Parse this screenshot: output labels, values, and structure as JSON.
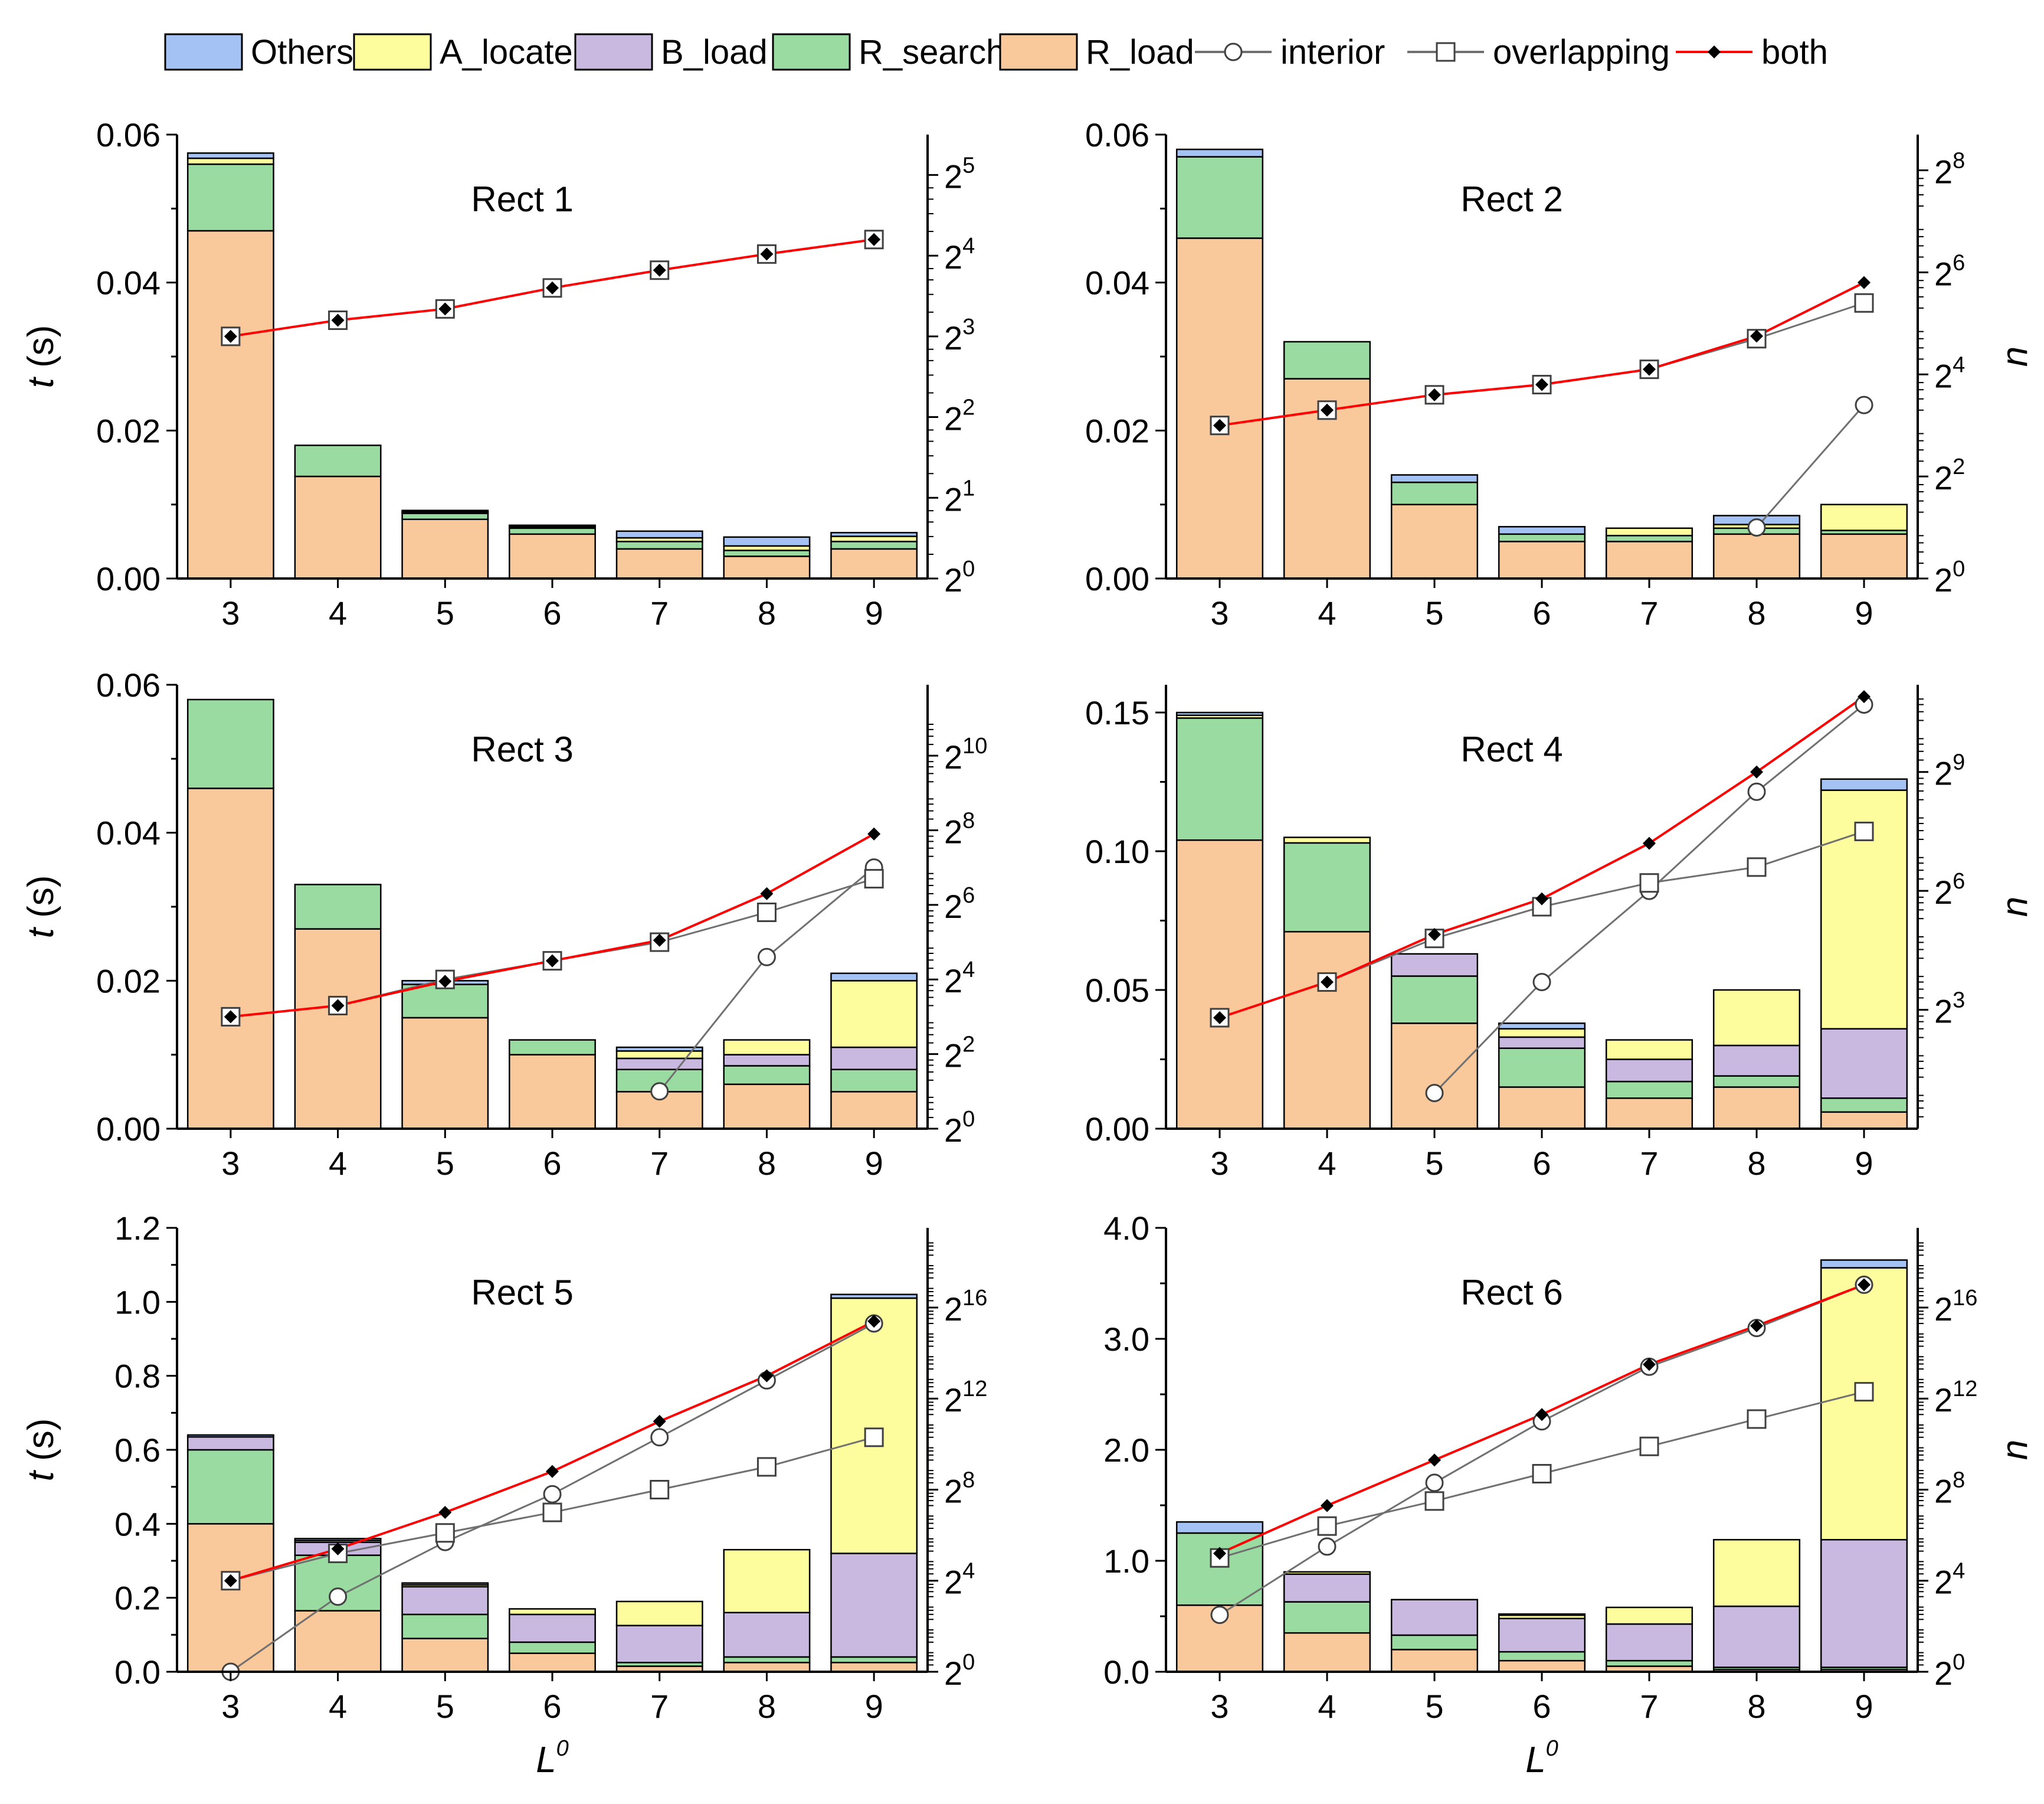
{
  "legend": {
    "items": [
      {
        "label": "Others",
        "kind": "bar",
        "key": "Others"
      },
      {
        "label": "A_locate",
        "kind": "bar",
        "key": "A_locate"
      },
      {
        "label": "B_load",
        "kind": "bar",
        "key": "B_load"
      },
      {
        "label": "R_search",
        "kind": "bar",
        "key": "R_search"
      },
      {
        "label": "R_load",
        "kind": "bar",
        "key": "R_load"
      },
      {
        "label": "interior",
        "kind": "line",
        "key": "interior"
      },
      {
        "label": "overlapping",
        "kind": "line",
        "key": "overlapping"
      },
      {
        "label": "both",
        "kind": "line",
        "key": "both"
      }
    ]
  },
  "colors": {
    "Others": "#a4c2f4",
    "A_locate": "#fdfd9e",
    "B_load": "#c9b8e0",
    "R_search": "#99dba0",
    "R_load": "#f9c89b",
    "both": "#ff0000",
    "lines": "#707070",
    "frame": "#000000"
  },
  "labels": {
    "y_left": "t",
    "y_left_unit": "(s)",
    "y_right": "n",
    "x_base": "L",
    "x_sup": "0"
  },
  "chart_data": [
    {
      "type": "bar",
      "title": "Rect 1",
      "categories": [
        "3",
        "4",
        "5",
        "6",
        "7",
        "8",
        "9"
      ],
      "ylim": [
        0,
        0.06
      ],
      "yticks": [
        "0.00",
        "0.02",
        "0.04",
        "0.06"
      ],
      "y2_exp_range": [
        0,
        5.5
      ],
      "y2_ticks": [
        "0",
        "1",
        "2",
        "3",
        "4",
        "5"
      ],
      "stack_order": [
        "R_load",
        "R_search",
        "B_load",
        "A_locate",
        "Others"
      ],
      "series": [
        {
          "name": "R_load",
          "values": [
            0.047,
            0.0138,
            0.008,
            0.006,
            0.004,
            0.003,
            0.004
          ]
        },
        {
          "name": "R_search",
          "values": [
            0.009,
            0.0042,
            0.0008,
            0.0008,
            0.001,
            0.0008,
            0.001
          ]
        },
        {
          "name": "B_load",
          "values": [
            0,
            0,
            0,
            0,
            0,
            0,
            0
          ]
        },
        {
          "name": "A_locate",
          "values": [
            0.0008,
            0,
            0.0002,
            0.0002,
            0.0005,
            0.0006,
            0.0007
          ]
        },
        {
          "name": "Others",
          "values": [
            0.0007,
            0,
            0.0002,
            0.0002,
            0.0009,
            0.0012,
            0.0005
          ]
        }
      ],
      "right_axis_exponents": {
        "interior": [
          null,
          null,
          null,
          null,
          null,
          null,
          null
        ],
        "overlapping": [
          3.0,
          3.2,
          3.34,
          3.6,
          3.82,
          4.02,
          4.2
        ],
        "both": [
          3.0,
          3.2,
          3.34,
          3.6,
          3.82,
          4.02,
          4.2
        ]
      }
    },
    {
      "type": "bar",
      "title": "Rect 2",
      "categories": [
        "3",
        "4",
        "5",
        "6",
        "7",
        "8",
        "9"
      ],
      "ylim": [
        0,
        0.06
      ],
      "yticks": [
        "0.00",
        "0.02",
        "0.04",
        "0.06"
      ],
      "y2_exp_range": [
        0,
        8.7
      ],
      "y2_ticks": [
        "0",
        "2",
        "4",
        "6",
        "8"
      ],
      "stack_order": [
        "R_load",
        "R_search",
        "B_load",
        "A_locate",
        "Others"
      ],
      "series": [
        {
          "name": "R_load",
          "values": [
            0.046,
            0.027,
            0.01,
            0.005,
            0.005,
            0.006,
            0.006
          ]
        },
        {
          "name": "R_search",
          "values": [
            0.011,
            0.005,
            0.003,
            0.001,
            0.0008,
            0.0008,
            0.0005
          ]
        },
        {
          "name": "B_load",
          "values": [
            0,
            0,
            0,
            0,
            0,
            0,
            0
          ]
        },
        {
          "name": "A_locate",
          "values": [
            0,
            0,
            0,
            0,
            0.001,
            0.0005,
            0.0035
          ]
        },
        {
          "name": "Others",
          "values": [
            0.001,
            0,
            0.001,
            0.001,
            0,
            0.0012,
            0
          ]
        }
      ],
      "right_axis_exponents": {
        "interior": [
          null,
          null,
          null,
          null,
          null,
          1.0,
          3.4
        ],
        "overlapping": [
          3.0,
          3.3,
          3.6,
          3.8,
          4.1,
          4.7,
          5.4
        ],
        "both": [
          3.0,
          3.3,
          3.6,
          3.8,
          4.1,
          4.75,
          5.8
        ]
      }
    },
    {
      "type": "bar",
      "title": "Rect 3",
      "categories": [
        "3",
        "4",
        "5",
        "6",
        "7",
        "8",
        "9"
      ],
      "ylim": [
        0,
        0.06
      ],
      "yticks": [
        "0.00",
        "0.02",
        "0.04",
        "0.06"
      ],
      "y2_exp_range": [
        0,
        11.9
      ],
      "y2_ticks": [
        "0",
        "2",
        "4",
        "6",
        "8",
        "10"
      ],
      "stack_order": [
        "R_load",
        "R_search",
        "B_load",
        "A_locate",
        "Others"
      ],
      "series": [
        {
          "name": "R_load",
          "values": [
            0.046,
            0.027,
            0.015,
            0.01,
            0.005,
            0.006,
            0.005
          ]
        },
        {
          "name": "R_search",
          "values": [
            0.012,
            0.006,
            0.0045,
            0.002,
            0.003,
            0.0025,
            0.003
          ]
        },
        {
          "name": "B_load",
          "values": [
            0,
            0,
            0,
            0,
            0.0015,
            0.0015,
            0.003
          ]
        },
        {
          "name": "A_locate",
          "values": [
            0,
            0,
            0,
            0,
            0.001,
            0.002,
            0.009
          ]
        },
        {
          "name": "Others",
          "values": [
            0,
            0,
            0.0005,
            0,
            0.0005,
            0,
            0.001
          ]
        }
      ],
      "right_axis_exponents": {
        "interior": [
          null,
          null,
          null,
          null,
          1.0,
          4.6,
          7.0
        ],
        "overlapping": [
          3.0,
          3.3,
          4.0,
          4.5,
          5.0,
          5.8,
          6.7
        ],
        "both": [
          3.0,
          3.3,
          3.95,
          4.5,
          5.05,
          6.3,
          7.9
        ]
      }
    },
    {
      "type": "bar",
      "title": "Rect 4",
      "categories": [
        "3",
        "4",
        "5",
        "6",
        "7",
        "8",
        "9"
      ],
      "ylim": [
        0,
        0.16
      ],
      "yticks": [
        "0.00",
        "0.05",
        "0.10",
        "0.15"
      ],
      "y2_exp_range": [
        0,
        11.2
      ],
      "y2_ticks": [
        "3",
        "6",
        "9"
      ],
      "stack_order": [
        "R_load",
        "R_search",
        "B_load",
        "A_locate",
        "Others"
      ],
      "series": [
        {
          "name": "R_load",
          "values": [
            0.104,
            0.071,
            0.038,
            0.015,
            0.011,
            0.015,
            0.006
          ]
        },
        {
          "name": "R_search",
          "values": [
            0.044,
            0.032,
            0.017,
            0.014,
            0.006,
            0.004,
            0.005
          ]
        },
        {
          "name": "B_load",
          "values": [
            0,
            0,
            0.008,
            0.004,
            0.008,
            0.011,
            0.025
          ]
        },
        {
          "name": "A_locate",
          "values": [
            0.001,
            0.002,
            0,
            0.003,
            0.007,
            0.02,
            0.086
          ]
        },
        {
          "name": "Others",
          "values": [
            0.001,
            0,
            0,
            0.002,
            0,
            0,
            0.004
          ]
        }
      ],
      "right_axis_exponents": {
        "interior": [
          null,
          null,
          0.9,
          3.7,
          6.0,
          8.5,
          10.7
        ],
        "overlapping": [
          2.8,
          3.7,
          4.8,
          5.6,
          6.2,
          6.6,
          7.5
        ],
        "both": [
          2.8,
          3.7,
          4.9,
          5.8,
          7.2,
          9.0,
          10.9
        ]
      }
    },
    {
      "type": "bar",
      "title": "Rect 5",
      "categories": [
        "3",
        "4",
        "5",
        "6",
        "7",
        "8",
        "9"
      ],
      "ylim": [
        0,
        1.2
      ],
      "yticks": [
        "0.0",
        "0.2",
        "0.4",
        "0.6",
        "0.8",
        "1.0",
        "1.2"
      ],
      "y2_exp_range": [
        0,
        19.5
      ],
      "y2_ticks": [
        "0",
        "4",
        "8",
        "12",
        "16"
      ],
      "stack_order": [
        "R_load",
        "R_search",
        "B_load",
        "A_locate",
        "Others"
      ],
      "series": [
        {
          "name": "R_load",
          "values": [
            0.4,
            0.165,
            0.09,
            0.05,
            0.015,
            0.025,
            0.025
          ]
        },
        {
          "name": "R_search",
          "values": [
            0.2,
            0.15,
            0.065,
            0.03,
            0.01,
            0.015,
            0.015
          ]
        },
        {
          "name": "B_load",
          "values": [
            0.035,
            0.035,
            0.075,
            0.075,
            0.1,
            0.12,
            0.28
          ]
        },
        {
          "name": "A_locate",
          "values": [
            0,
            0.005,
            0.005,
            0.015,
            0.065,
            0.17,
            0.69
          ]
        },
        {
          "name": "Others",
          "values": [
            0.005,
            0.005,
            0.005,
            0,
            0,
            0,
            0.01
          ]
        }
      ],
      "right_axis_exponents": {
        "interior": [
          0.0,
          3.3,
          5.7,
          7.8,
          10.3,
          12.8,
          15.3
        ],
        "overlapping": [
          4.0,
          5.2,
          6.1,
          7.0,
          8.0,
          9.0,
          10.3
        ],
        "both": [
          4.0,
          5.4,
          7.0,
          8.8,
          11.0,
          13.0,
          15.4
        ]
      }
    },
    {
      "type": "bar",
      "title": "Rect 6",
      "categories": [
        "3",
        "4",
        "5",
        "6",
        "7",
        "8",
        "9"
      ],
      "ylim": [
        0,
        4.0
      ],
      "yticks": [
        "0.0",
        "1.0",
        "2.0",
        "3.0",
        "4.0"
      ],
      "y2_exp_range": [
        0,
        19.5
      ],
      "y2_ticks": [
        "0",
        "4",
        "8",
        "12",
        "16"
      ],
      "stack_order": [
        "R_load",
        "R_search",
        "B_load",
        "A_locate",
        "Others"
      ],
      "series": [
        {
          "name": "R_load",
          "values": [
            0.6,
            0.35,
            0.2,
            0.1,
            0.05,
            0.02,
            0.02
          ]
        },
        {
          "name": "R_search",
          "values": [
            0.65,
            0.28,
            0.13,
            0.08,
            0.05,
            0.02,
            0.02
          ]
        },
        {
          "name": "B_load",
          "values": [
            0,
            0.25,
            0.32,
            0.3,
            0.33,
            0.55,
            1.15
          ]
        },
        {
          "name": "A_locate",
          "values": [
            0,
            0.02,
            0,
            0.03,
            0.15,
            0.6,
            2.45
          ]
        },
        {
          "name": "Others",
          "values": [
            0.1,
            0,
            0,
            0.01,
            0,
            0,
            0.07
          ]
        }
      ],
      "right_axis_exponents": {
        "interior": [
          2.5,
          5.5,
          8.3,
          11.0,
          13.4,
          15.1,
          17.0
        ],
        "overlapping": [
          5.0,
          6.4,
          7.5,
          8.7,
          9.9,
          11.1,
          12.3
        ],
        "both": [
          5.2,
          7.3,
          9.3,
          11.3,
          13.5,
          15.2,
          17.0
        ]
      }
    }
  ]
}
